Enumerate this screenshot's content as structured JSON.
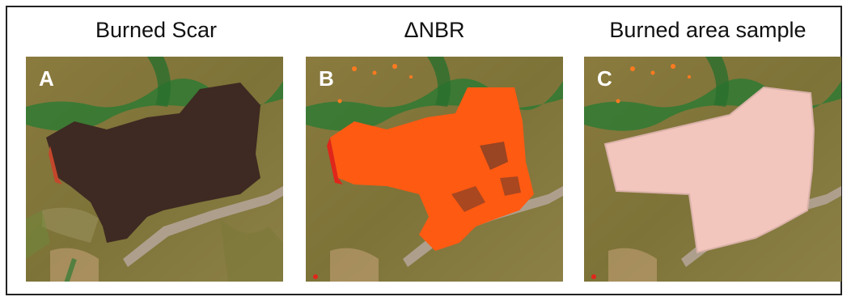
{
  "panels": [
    {
      "title": "Burned Scar",
      "letter": "A"
    },
    {
      "title": "ΔNBR",
      "letter": "B"
    },
    {
      "title": "Burned area sample",
      "letter": "C"
    }
  ]
}
